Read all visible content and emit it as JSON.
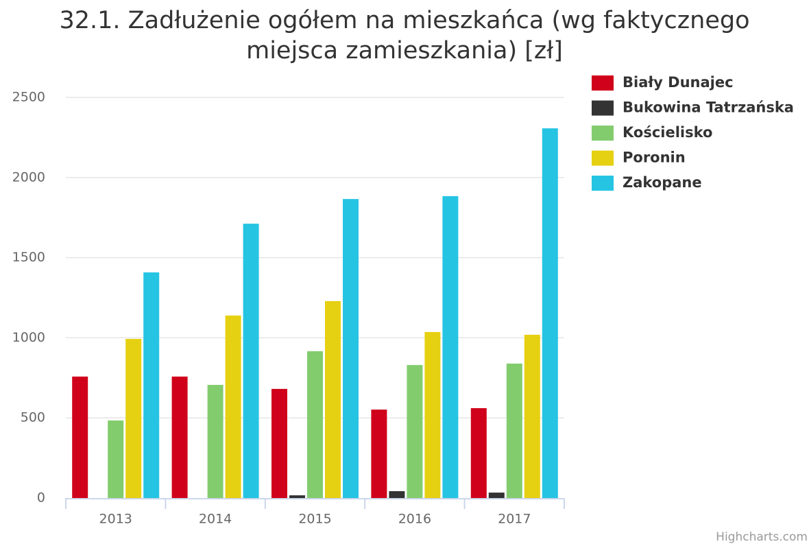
{
  "chart_data": {
    "type": "bar",
    "title": "32.1. Zadłużenie ogółem na mieszkańca (wg faktycznego miejsca zamieszkania) [zł]",
    "categories": [
      "2013",
      "2014",
      "2015",
      "2016",
      "2017"
    ],
    "series": [
      {
        "name": "Biały Dunajec",
        "color": "#d0021b",
        "values": [
          758,
          758,
          681,
          552,
          561
        ]
      },
      {
        "name": "Bukowina Tatrzańska",
        "color": "#333333",
        "values": [
          0,
          0,
          17,
          43,
          34
        ]
      },
      {
        "name": "Kościelisko",
        "color": "#83cc6e",
        "values": [
          484,
          706,
          916,
          830,
          839
        ]
      },
      {
        "name": "Poronin",
        "color": "#e6d012",
        "values": [
          993,
          1139,
          1229,
          1036,
          1019
        ]
      },
      {
        "name": "Zakopane",
        "color": "#26c4e3",
        "values": [
          1408,
          1712,
          1866,
          1884,
          2307
        ]
      }
    ],
    "ylim": [
      0,
      2500
    ],
    "yticks": [
      0,
      500,
      1000,
      1500,
      2000,
      2500
    ],
    "grid": true,
    "legend": "right",
    "credits": "Highcharts.com"
  }
}
